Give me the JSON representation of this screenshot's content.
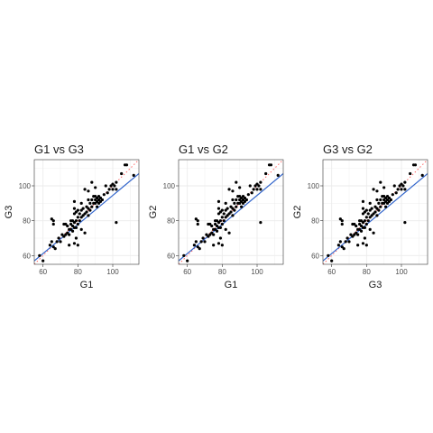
{
  "chart_data": [
    {
      "type": "scatter",
      "title": "G1 vs G3",
      "xlabel": "G1",
      "ylabel": "G3",
      "xlim": [
        55,
        115
      ],
      "ylim": [
        55,
        115
      ],
      "xticks": [
        60,
        80,
        100
      ],
      "yticks": [
        60,
        80,
        100
      ],
      "grid": true,
      "legend": "none",
      "fit_line": {
        "from": [
          55,
          57
        ],
        "to": [
          115,
          107
        ]
      },
      "identity_line": true,
      "colors": {
        "points": "#000000",
        "fit": "#3366cc",
        "identity": "#ff6666",
        "panel_border": "#333333",
        "grid": "#ebebeb"
      },
      "x": [
        58,
        60,
        64,
        65,
        66,
        66,
        67,
        68,
        69,
        70,
        71,
        72,
        72,
        73,
        73,
        74,
        74,
        75,
        75,
        76,
        76,
        76,
        77,
        77,
        77,
        78,
        78,
        78,
        78,
        79,
        79,
        79,
        80,
        80,
        80,
        81,
        81,
        82,
        82,
        82,
        83,
        83,
        84,
        84,
        85,
        85,
        86,
        86,
        86,
        87,
        87,
        88,
        88,
        89,
        89,
        90,
        90,
        90,
        91,
        91,
        91,
        92,
        92,
        92,
        93,
        93,
        94,
        95,
        96,
        97,
        98,
        99,
        100,
        100,
        101,
        102,
        102,
        105,
        107,
        108,
        112,
        65,
        66,
        75,
        78,
        80,
        84,
        88,
        102,
        78,
        79,
        82,
        86,
        90
      ],
      "y": [
        60,
        57,
        66,
        68,
        80,
        65,
        64,
        68,
        70,
        68,
        72,
        71,
        78,
        72,
        78,
        73,
        77,
        75,
        72,
        75,
        78,
        80,
        74,
        77,
        80,
        76,
        79,
        84,
        87,
        76,
        80,
        85,
        78,
        82,
        86,
        80,
        84,
        82,
        86,
        90,
        83,
        87,
        84,
        98,
        85,
        88,
        83,
        87,
        92,
        86,
        90,
        88,
        92,
        90,
        94,
        90,
        92,
        94,
        91,
        93,
        88,
        90,
        92,
        94,
        91,
        93,
        92,
        95,
        100,
        96,
        98,
        100,
        98,
        101,
        100,
        102,
        79,
        107,
        112,
        112,
        106,
        81,
        78,
        66,
        67,
        66,
        73,
        102,
        98,
        91,
        70,
        75,
        97,
        99
      ]
    },
    {
      "type": "scatter",
      "title": "G1 vs G2",
      "xlabel": "G1",
      "ylabel": "G2",
      "xlim": [
        55,
        115
      ],
      "ylim": [
        55,
        115
      ],
      "xticks": [
        60,
        80,
        100
      ],
      "yticks": [
        60,
        80,
        100
      ],
      "grid": true,
      "legend": "none",
      "fit_line": {
        "from": [
          55,
          57
        ],
        "to": [
          115,
          107
        ]
      },
      "identity_line": true,
      "colors": {
        "points": "#000000",
        "fit": "#3366cc",
        "identity": "#ff6666",
        "panel_border": "#333333",
        "grid": "#ebebeb"
      },
      "x": [
        58,
        60,
        64,
        65,
        66,
        66,
        67,
        68,
        69,
        70,
        71,
        72,
        72,
        73,
        73,
        74,
        74,
        75,
        75,
        76,
        76,
        76,
        77,
        77,
        77,
        78,
        78,
        78,
        78,
        79,
        79,
        79,
        80,
        80,
        80,
        81,
        81,
        82,
        82,
        82,
        83,
        83,
        84,
        84,
        85,
        85,
        86,
        86,
        86,
        87,
        87,
        88,
        88,
        89,
        89,
        90,
        90,
        90,
        91,
        91,
        91,
        92,
        92,
        92,
        93,
        93,
        94,
        95,
        96,
        97,
        98,
        99,
        100,
        100,
        101,
        102,
        102,
        105,
        107,
        108,
        112,
        65,
        66,
        75,
        78,
        80,
        84,
        88,
        102,
        78,
        79,
        82,
        86,
        90
      ],
      "y": [
        60,
        57,
        66,
        68,
        80,
        65,
        64,
        68,
        70,
        68,
        72,
        71,
        78,
        72,
        78,
        73,
        77,
        75,
        72,
        75,
        78,
        80,
        74,
        77,
        80,
        76,
        79,
        84,
        87,
        76,
        80,
        85,
        78,
        82,
        86,
        80,
        84,
        82,
        86,
        90,
        83,
        87,
        84,
        98,
        85,
        88,
        83,
        87,
        92,
        86,
        90,
        88,
        92,
        90,
        94,
        90,
        92,
        94,
        91,
        93,
        88,
        90,
        92,
        94,
        91,
        93,
        92,
        95,
        100,
        96,
        98,
        100,
        98,
        101,
        100,
        102,
        79,
        107,
        112,
        112,
        106,
        81,
        78,
        66,
        67,
        66,
        73,
        102,
        98,
        91,
        70,
        75,
        97,
        99
      ]
    },
    {
      "type": "scatter",
      "title": "G3 vs G2",
      "xlabel": "G3",
      "ylabel": "G2",
      "xlim": [
        55,
        115
      ],
      "ylim": [
        55,
        115
      ],
      "xticks": [
        60,
        80,
        100
      ],
      "yticks": [
        60,
        80,
        100
      ],
      "grid": true,
      "legend": "none",
      "fit_line": {
        "from": [
          55,
          57
        ],
        "to": [
          115,
          107
        ]
      },
      "identity_line": true,
      "colors": {
        "points": "#000000",
        "fit": "#3366cc",
        "identity": "#ff6666",
        "panel_border": "#333333",
        "grid": "#ebebeb"
      },
      "x": [
        58,
        60,
        64,
        65,
        66,
        66,
        67,
        68,
        69,
        70,
        71,
        72,
        72,
        73,
        73,
        74,
        74,
        75,
        75,
        76,
        76,
        76,
        77,
        77,
        77,
        78,
        78,
        78,
        78,
        79,
        79,
        79,
        80,
        80,
        80,
        81,
        81,
        82,
        82,
        82,
        83,
        83,
        84,
        84,
        85,
        85,
        86,
        86,
        86,
        87,
        87,
        88,
        88,
        89,
        89,
        90,
        90,
        90,
        91,
        91,
        91,
        92,
        92,
        92,
        93,
        93,
        94,
        95,
        96,
        97,
        98,
        99,
        100,
        100,
        101,
        102,
        102,
        105,
        107,
        108,
        112,
        65,
        66,
        75,
        78,
        80,
        84,
        88,
        102,
        78,
        79,
        82,
        86,
        90
      ],
      "y": [
        60,
        57,
        66,
        68,
        80,
        65,
        64,
        68,
        70,
        68,
        72,
        71,
        78,
        72,
        78,
        73,
        77,
        75,
        72,
        75,
        78,
        80,
        74,
        77,
        80,
        76,
        79,
        84,
        87,
        76,
        80,
        85,
        78,
        82,
        86,
        80,
        84,
        82,
        86,
        90,
        83,
        87,
        84,
        98,
        85,
        88,
        83,
        87,
        92,
        86,
        90,
        88,
        92,
        90,
        94,
        90,
        92,
        94,
        91,
        93,
        88,
        90,
        92,
        94,
        91,
        93,
        92,
        95,
        100,
        96,
        98,
        100,
        98,
        101,
        100,
        102,
        79,
        107,
        112,
        112,
        106,
        81,
        78,
        66,
        67,
        66,
        73,
        102,
        98,
        91,
        70,
        75,
        97,
        99
      ]
    }
  ]
}
